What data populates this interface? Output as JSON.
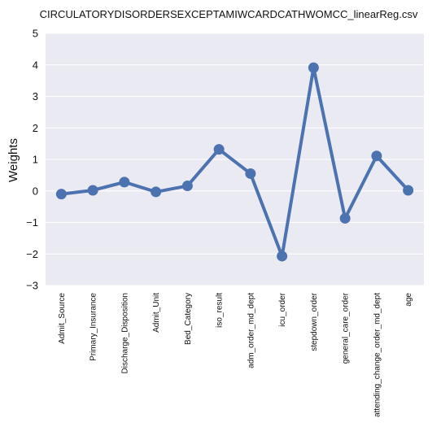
{
  "chart_data": {
    "type": "line",
    "title": "CIRCULATORYDISORDERSEXCEPTAMIWCARDCATHWOMCC_linearReg.csv",
    "xlabel": "",
    "ylabel": "Weights",
    "categories": [
      "Admit_Source",
      "Primary_Insurance",
      "Discharge_Disposition",
      "Admit_Unit",
      "Bed_Category",
      "iso_result",
      "adm_order_md_dept",
      "icu_order",
      "stepdown_order",
      "general_care_order",
      "attending_change_order_md_dept",
      "age"
    ],
    "values": [
      -0.1,
      0.02,
      0.28,
      -0.03,
      0.16,
      1.32,
      0.55,
      -2.07,
      3.91,
      -0.87,
      1.11,
      0.02
    ],
    "ylim": [
      -3,
      5
    ],
    "yticks": [
      -3,
      -2,
      -1,
      0,
      1,
      2,
      3,
      4,
      5
    ],
    "ytick_labels": [
      "−3",
      "−2",
      "−1",
      "0",
      "1",
      "2",
      "3",
      "4",
      "5"
    ],
    "grid": true,
    "line_color": "#4c72b0",
    "plot_background": "#eaeaf2",
    "grid_color": "#ffffff"
  }
}
